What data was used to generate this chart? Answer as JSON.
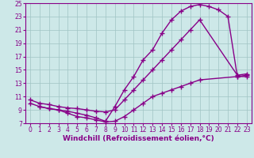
{
  "background_color": "#cde8e8",
  "grid_color": "#a0c4c4",
  "line_color": "#880088",
  "marker": "+",
  "markersize": 4,
  "linewidth": 1.0,
  "xlabel": "Windchill (Refroidissement éolien,°C)",
  "xlabel_fontsize": 6.5,
  "xlim": [
    -0.5,
    23.5
  ],
  "ylim": [
    7,
    25
  ],
  "xticks": [
    0,
    1,
    2,
    3,
    4,
    5,
    6,
    7,
    8,
    9,
    10,
    11,
    12,
    13,
    14,
    15,
    16,
    17,
    18,
    19,
    20,
    21,
    22,
    23
  ],
  "yticks": [
    7,
    9,
    11,
    13,
    15,
    17,
    19,
    21,
    23,
    25
  ],
  "tick_fontsize": 5.5,
  "line1_x": [
    0,
    1,
    2,
    3,
    4,
    5,
    6,
    7,
    8,
    9,
    10,
    11,
    12,
    13,
    14,
    15,
    16,
    17,
    18,
    22,
    23
  ],
  "line1_y": [
    10,
    9.5,
    9.2,
    9.0,
    8.5,
    8.0,
    7.8,
    7.5,
    7.2,
    7.3,
    8.0,
    9.0,
    10.0,
    11.0,
    11.5,
    12.0,
    12.5,
    13.0,
    13.5,
    14.0,
    14.2
  ],
  "line2_x": [
    0,
    1,
    2,
    3,
    4,
    5,
    6,
    7,
    8,
    9,
    10,
    11,
    12,
    13,
    14,
    15,
    16,
    17,
    18,
    22,
    23
  ],
  "line2_y": [
    10.5,
    10.0,
    9.8,
    9.5,
    9.3,
    9.2,
    9.0,
    8.8,
    8.7,
    9.0,
    10.5,
    12.0,
    13.5,
    15.0,
    16.5,
    18.0,
    19.5,
    21.0,
    22.5,
    14.2,
    14.4
  ],
  "line3_x": [
    1,
    2,
    3,
    4,
    5,
    6,
    7,
    8,
    9,
    10,
    11,
    12,
    13,
    14,
    15,
    16,
    17,
    18,
    19,
    20,
    21,
    22,
    23
  ],
  "line3_y": [
    9.5,
    9.2,
    9.0,
    8.8,
    8.5,
    8.2,
    7.8,
    7.3,
    9.5,
    12.0,
    14.0,
    16.5,
    18.0,
    20.5,
    22.5,
    23.8,
    24.5,
    24.8,
    24.5,
    24.0,
    23.0,
    14.0,
    14.0
  ]
}
